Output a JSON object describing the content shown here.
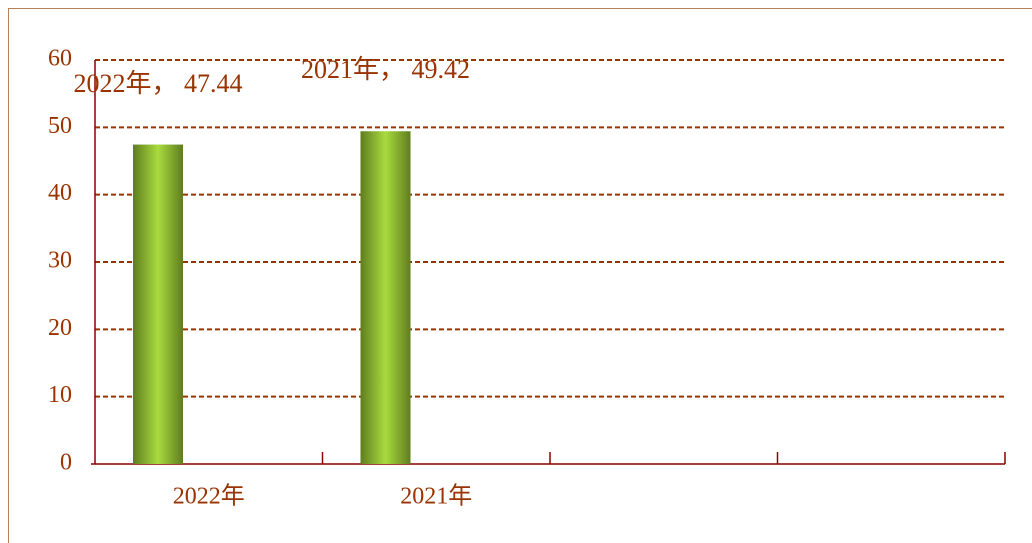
{
  "chart_data": {
    "type": "bar",
    "categories": [
      "2022年",
      "2021年",
      null,
      null
    ],
    "values": [
      47.44,
      49.42,
      null,
      null
    ],
    "value_labels": [
      "2022年， 47.44",
      "2021年， 49.42",
      null,
      null
    ],
    "color": "#8fbf2f",
    "ylim": [
      0,
      60
    ],
    "yticks": [
      0,
      10,
      20,
      30,
      40,
      50,
      60
    ],
    "grid": true
  }
}
